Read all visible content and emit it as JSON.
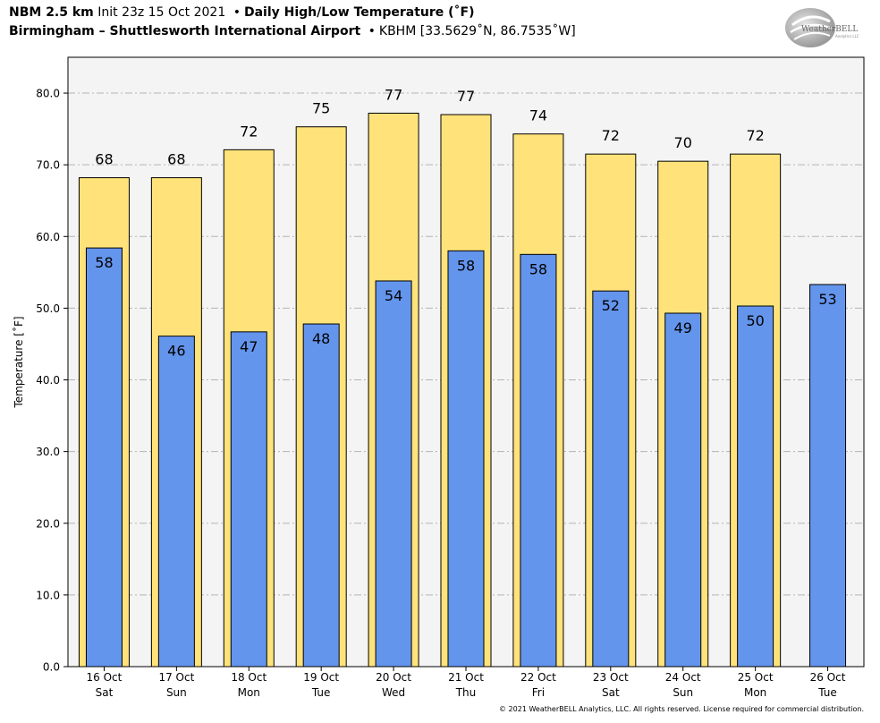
{
  "header": {
    "model": "NBM 2.5 km",
    "init": "Init 23z 15 Oct 2021",
    "product": "Daily High/Low Temperature (˚F)",
    "location": "Birmingham – Shuttlesworth International Airport",
    "station": "KBHM [33.5629˚N, 86.7535˚W]",
    "bullet": "•"
  },
  "logo": {
    "text": "WeatherBELL",
    "subtext": "Analytics LLC"
  },
  "footer": {
    "copyright": "© 2021 WeatherBELL Analytics, LLC. All rights reserved. License required for commercial distribution."
  },
  "colors": {
    "high_bar": "#FFE37A",
    "low_bar": "#6495ED",
    "plot_bg": "#F4F4F4",
    "grid": "#B4B4B4"
  },
  "chart_data": {
    "type": "bar",
    "ylabel": "Temperature [˚F]",
    "ylim": [
      0,
      85
    ],
    "yticks": [
      0,
      10,
      20,
      30,
      40,
      50,
      60,
      70,
      80
    ],
    "ytick_labels": [
      "0.0",
      "10.0",
      "20.0",
      "30.0",
      "40.0",
      "50.0",
      "60.0",
      "70.0",
      "80.0"
    ],
    "grid": true,
    "categories": [
      {
        "date": "16 Oct",
        "day": "Sat"
      },
      {
        "date": "17 Oct",
        "day": "Sun"
      },
      {
        "date": "18 Oct",
        "day": "Mon"
      },
      {
        "date": "19 Oct",
        "day": "Tue"
      },
      {
        "date": "20 Oct",
        "day": "Wed"
      },
      {
        "date": "21 Oct",
        "day": "Thu"
      },
      {
        "date": "22 Oct",
        "day": "Fri"
      },
      {
        "date": "23 Oct",
        "day": "Sat"
      },
      {
        "date": "24 Oct",
        "day": "Sun"
      },
      {
        "date": "25 Oct",
        "day": "Mon"
      },
      {
        "date": "26 Oct",
        "day": "Tue"
      }
    ],
    "series": [
      {
        "key": "high",
        "values": [
          68.2,
          68.2,
          72.1,
          75.3,
          77.2,
          77.0,
          74.3,
          71.5,
          70.5,
          71.5,
          null
        ],
        "labels": [
          "68",
          "68",
          "72",
          "75",
          "77",
          "77",
          "74",
          "72",
          "70",
          "72",
          ""
        ]
      },
      {
        "key": "low",
        "values": [
          58.4,
          46.1,
          46.7,
          47.8,
          53.8,
          58.0,
          57.5,
          52.4,
          49.3,
          50.3,
          53.3
        ],
        "labels": [
          "58",
          "46",
          "47",
          "48",
          "54",
          "58",
          "58",
          "52",
          "49",
          "50",
          "53"
        ]
      }
    ]
  }
}
